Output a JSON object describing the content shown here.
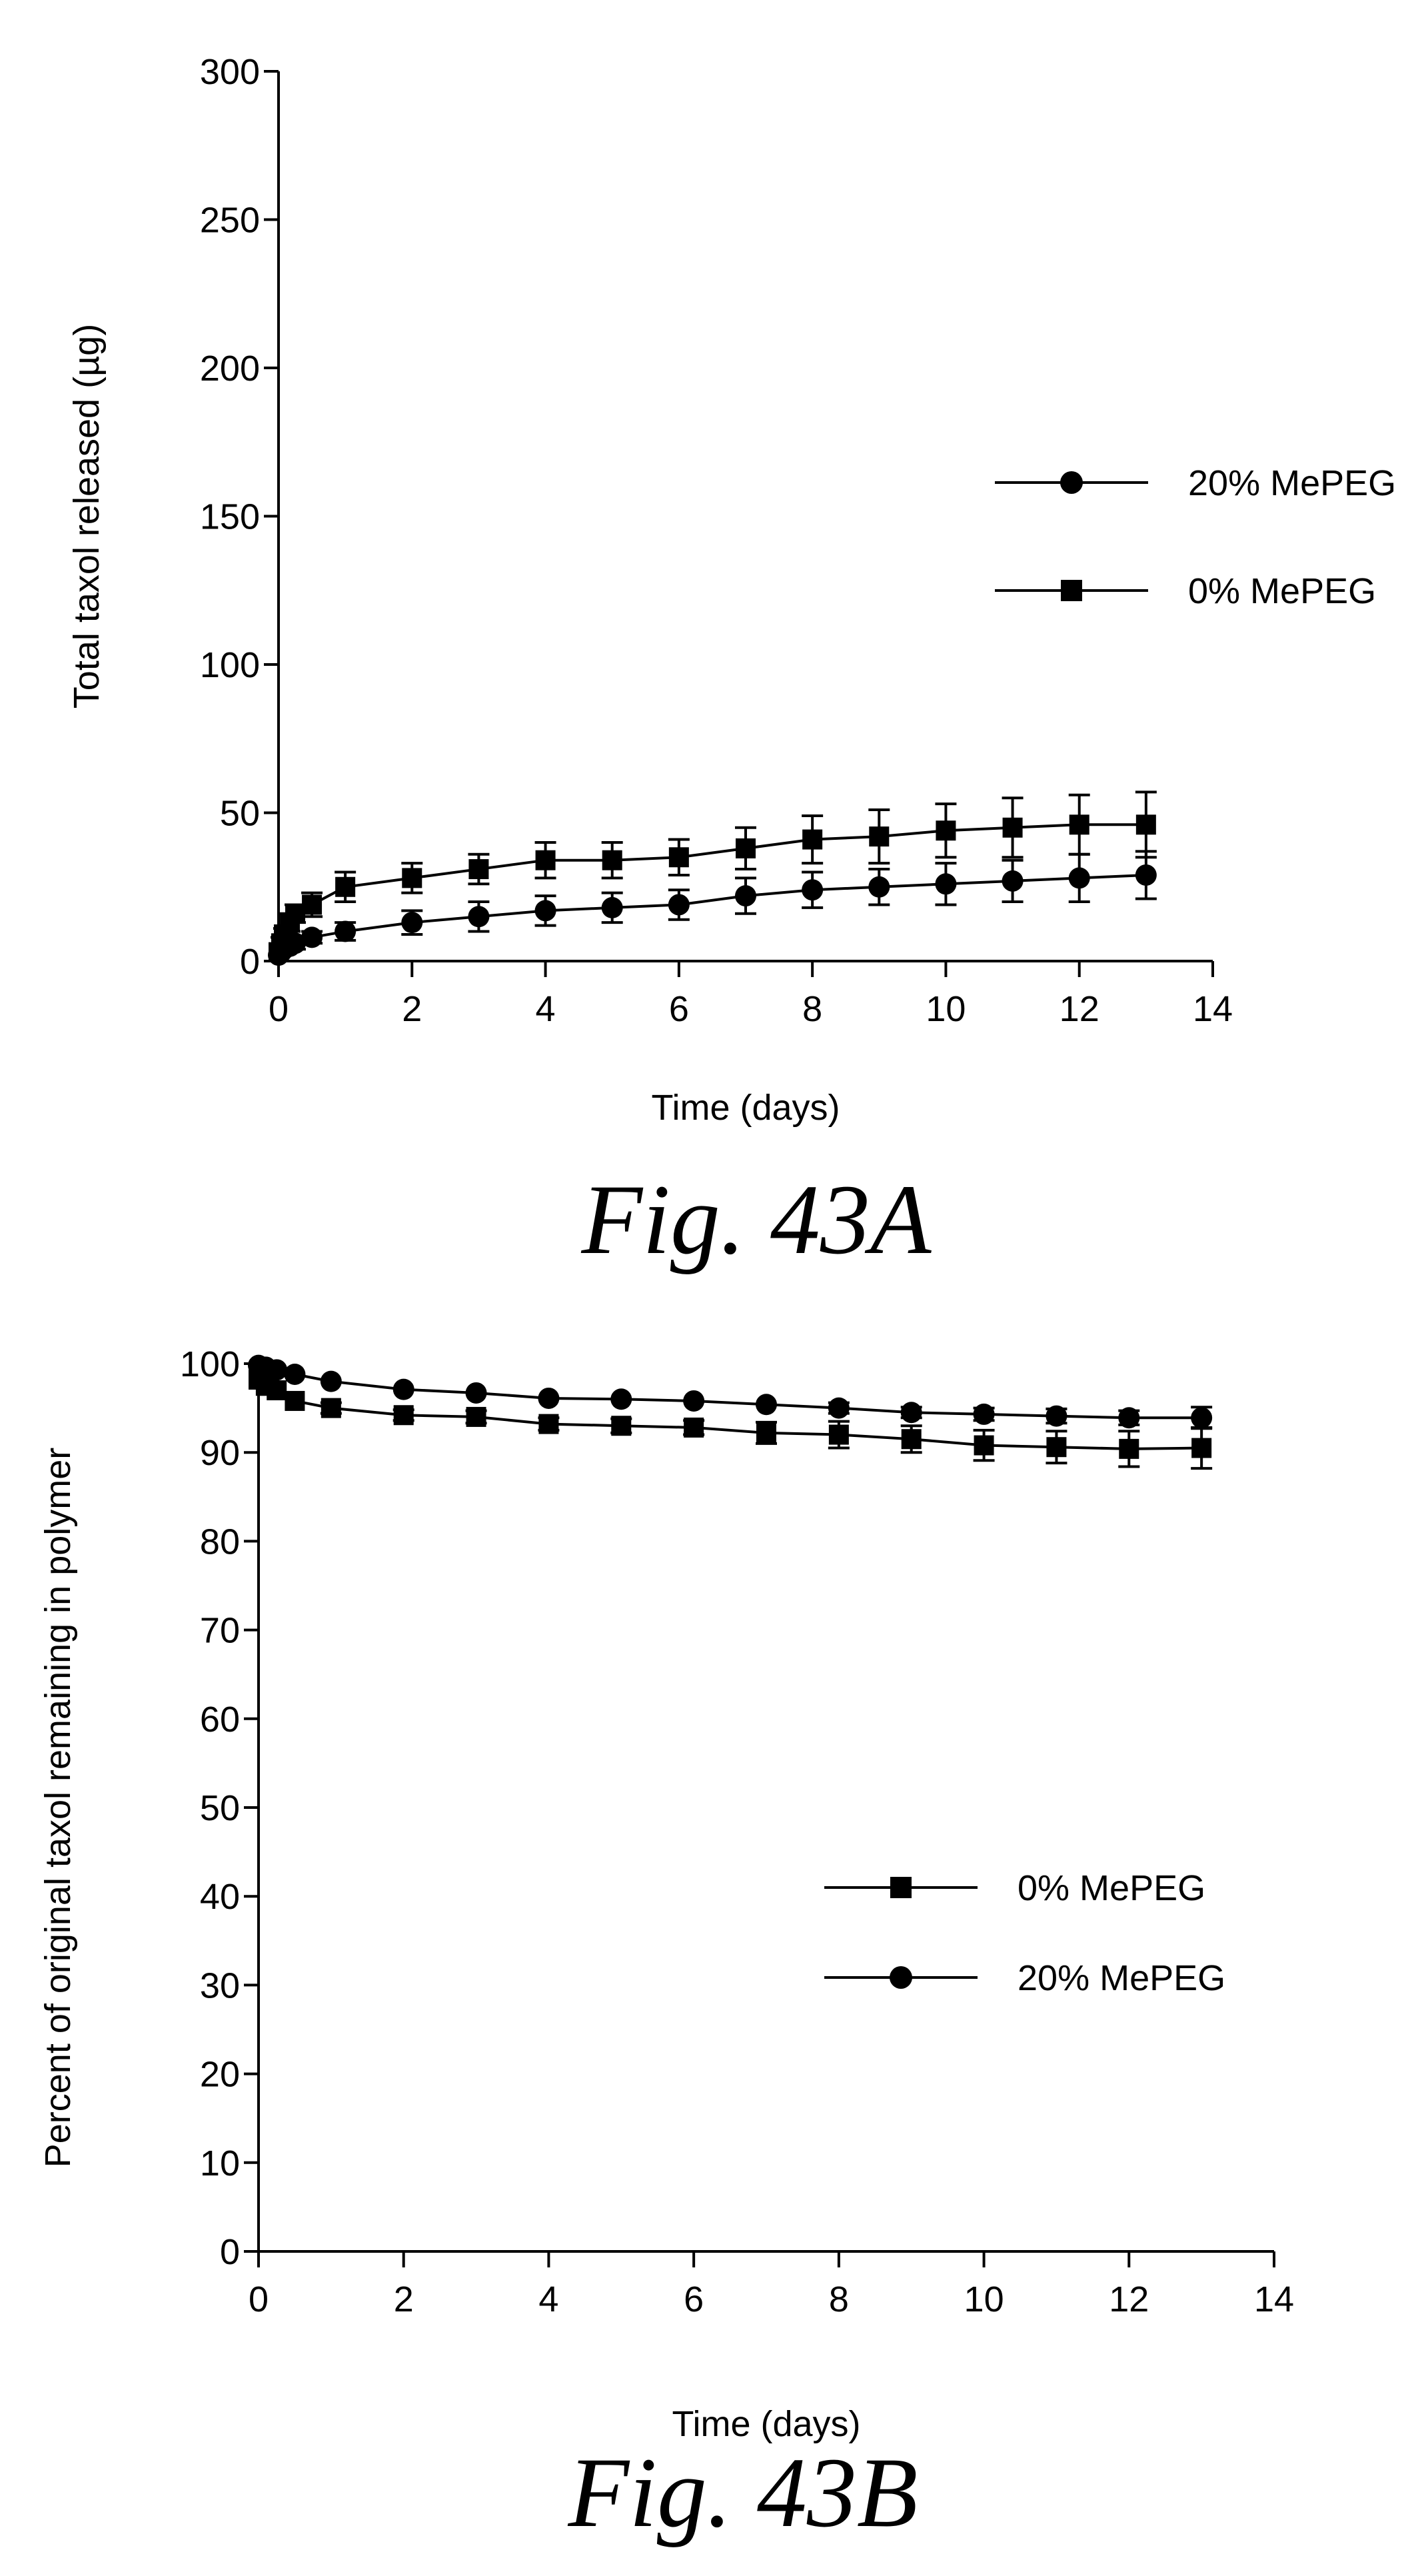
{
  "chart_data": [
    {
      "type": "line",
      "caption": "Fig. 43A",
      "xlabel": "Time (days)",
      "ylabel": "Total taxol released (µg)",
      "xlim": [
        0,
        14
      ],
      "ylim": [
        0,
        300
      ],
      "xticks": [
        0,
        2,
        4,
        6,
        8,
        10,
        12,
        14
      ],
      "yticks": [
        0,
        50,
        100,
        150,
        200,
        250,
        300
      ],
      "legend_position": "right",
      "legend_order": [
        "20% MePEG",
        "0% MePEG"
      ],
      "series": [
        {
          "name": "20% MePEG",
          "marker": "circle",
          "x": [
            0,
            0.04,
            0.08,
            0.17,
            0.25,
            0.5,
            1,
            2,
            3,
            4,
            5,
            6,
            7,
            8,
            9,
            10,
            11,
            12,
            13
          ],
          "y": [
            2,
            3,
            4,
            5,
            6,
            8,
            10,
            13,
            15,
            17,
            18,
            19,
            22,
            24,
            25,
            26,
            27,
            28,
            29
          ],
          "error": [
            0,
            1,
            1,
            1,
            2,
            2,
            3,
            4,
            5,
            5,
            5,
            5,
            6,
            6,
            6,
            7,
            7,
            8,
            8
          ]
        },
        {
          "name": "0% MePEG",
          "marker": "square",
          "x": [
            0,
            0.04,
            0.08,
            0.17,
            0.25,
            0.5,
            1,
            2,
            3,
            4,
            5,
            6,
            7,
            8,
            9,
            10,
            11,
            12,
            13
          ],
          "y": [
            3,
            6,
            9,
            13,
            16,
            19,
            25,
            28,
            31,
            34,
            34,
            35,
            38,
            41,
            42,
            44,
            45,
            46,
            46
          ],
          "error": [
            1,
            2,
            2,
            3,
            3,
            4,
            5,
            5,
            5,
            6,
            6,
            6,
            7,
            8,
            9,
            9,
            10,
            10,
            11
          ]
        }
      ]
    },
    {
      "type": "line",
      "caption": "Fig. 43B",
      "xlabel": "Time (days)",
      "ylabel": "Percent of original taxol remaining in polymer",
      "xlim": [
        0,
        14
      ],
      "ylim": [
        0,
        100
      ],
      "xticks": [
        0,
        2,
        4,
        6,
        8,
        10,
        12,
        14
      ],
      "yticks": [
        0,
        10,
        20,
        30,
        40,
        50,
        60,
        70,
        80,
        90,
        100
      ],
      "legend_position": "center-right",
      "legend_order": [
        "0% MePEG",
        "20% MePEG"
      ],
      "series": [
        {
          "name": "0% MePEG",
          "marker": "square",
          "x": [
            0,
            0.1,
            0.25,
            0.5,
            1,
            2,
            3,
            4,
            5,
            6,
            7,
            8,
            9,
            10,
            11,
            12,
            13
          ],
          "y": [
            98.2,
            97.5,
            97.0,
            95.8,
            95.0,
            94.2,
            94.0,
            93.2,
            93.0,
            92.8,
            92.2,
            92.0,
            91.5,
            90.8,
            90.6,
            90.4,
            90.5
          ],
          "error": [
            0.3,
            0.4,
            0.5,
            0.5,
            0.6,
            0.6,
            0.7,
            0.7,
            0.8,
            0.8,
            1.2,
            1.5,
            1.5,
            1.7,
            1.8,
            2.0,
            2.3
          ]
        },
        {
          "name": "20% MePEG",
          "marker": "circle",
          "x": [
            0,
            0.1,
            0.25,
            0.5,
            1,
            2,
            3,
            4,
            5,
            6,
            7,
            8,
            9,
            10,
            11,
            12,
            13
          ],
          "y": [
            99.8,
            99.6,
            99.3,
            98.8,
            98.0,
            97.1,
            96.7,
            96.1,
            96.0,
            95.8,
            95.4,
            95.0,
            94.5,
            94.3,
            94.1,
            93.9,
            93.9
          ],
          "error": [
            0.2,
            0.2,
            0.2,
            0.3,
            0.3,
            0.4,
            0.4,
            0.4,
            0.4,
            0.5,
            0.5,
            0.6,
            0.6,
            0.7,
            0.8,
            0.8,
            1.2
          ]
        }
      ]
    }
  ]
}
